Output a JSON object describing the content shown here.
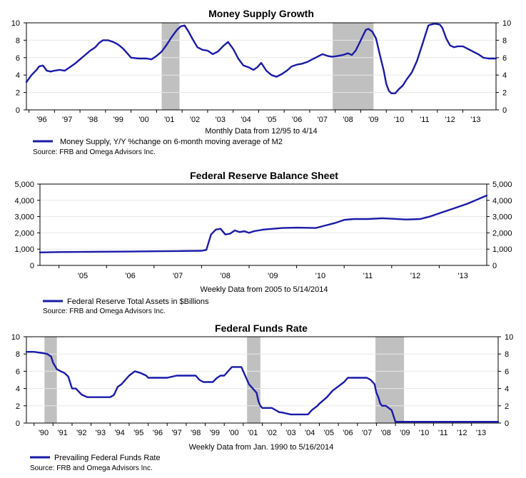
{
  "chart_data": [
    {
      "type": "line",
      "title": "Money Supply Growth",
      "caption": "Monthly Data from 12/95 to 4/14",
      "legend": "Money Supply, Y/Y %change on 6-month moving average of M2",
      "source": "Source: FRB and Omega Advisors Inc.",
      "y_ticks": [
        "0",
        "2",
        "4",
        "6",
        "8",
        "10"
      ],
      "x_tick_labels": [
        "'96",
        "'97",
        "'98",
        "'99",
        "'00",
        "'01",
        "'02",
        "'03",
        "'04",
        "'05",
        "'06",
        "'07",
        "'08",
        "'09",
        "'10",
        "'11",
        "'12",
        "'13"
      ],
      "ylim": [
        0,
        10
      ],
      "xlim": [
        1995.9,
        2014.3
      ],
      "recessions": [
        [
          2001.2,
          2001.9
        ],
        [
          2007.9,
          2009.5
        ]
      ],
      "line_color": "#1a1aaa",
      "recession_color": "#c0c0c0",
      "series": [
        {
          "name": "Money Supply, Y/Y %change on 6-month moving average of M2",
          "x": [
            1995.9,
            1996.0,
            1996.1,
            1996.3,
            1996.4,
            1996.55,
            1996.7,
            1996.85,
            1997.0,
            1997.2,
            1997.4,
            1997.6,
            1997.8,
            1998.0,
            1998.2,
            1998.4,
            1998.6,
            1998.75,
            1998.9,
            1999.1,
            1999.3,
            1999.5,
            1999.7,
            1999.85,
            2000.0,
            2000.3,
            2000.6,
            2000.8,
            2001.0,
            2001.2,
            2001.4,
            2001.6,
            2001.8,
            2001.95,
            2002.1,
            2002.25,
            2002.4,
            2002.6,
            2002.8,
            2003.0,
            2003.2,
            2003.4,
            2003.6,
            2003.8,
            2004.0,
            2004.2,
            2004.4,
            2004.6,
            2004.8,
            2004.95,
            2005.1,
            2005.3,
            2005.5,
            2005.7,
            2005.9,
            2006.1,
            2006.3,
            2006.5,
            2006.7,
            2006.9,
            2007.1,
            2007.3,
            2007.5,
            2007.7,
            2007.9,
            2008.1,
            2008.3,
            2008.5,
            2008.65,
            2008.8,
            2008.95,
            2009.1,
            2009.2,
            2009.3,
            2009.45,
            2009.6,
            2009.75,
            2009.9,
            2010.0,
            2010.1,
            2010.2,
            2010.35,
            2010.5,
            2010.65,
            2010.8,
            2011.0,
            2011.2,
            2011.4,
            2011.55,
            2011.65,
            2011.75,
            2011.9,
            2012.1,
            2012.2,
            2012.35,
            2012.5,
            2012.65,
            2012.8,
            2013.0,
            2013.2,
            2013.4,
            2013.6,
            2013.8,
            2014.0,
            2014.2,
            2014.3
          ],
          "y": [
            3.2,
            3.6,
            4.0,
            4.6,
            5.0,
            5.1,
            4.5,
            4.4,
            4.5,
            4.6,
            4.5,
            4.9,
            5.3,
            5.8,
            6.3,
            6.8,
            7.2,
            7.7,
            8.0,
            8.0,
            7.8,
            7.5,
            7.0,
            6.5,
            6.0,
            5.9,
            5.9,
            5.8,
            6.2,
            6.7,
            7.5,
            8.4,
            9.2,
            9.6,
            9.7,
            9.0,
            8.2,
            7.2,
            6.9,
            6.8,
            6.4,
            6.7,
            7.3,
            7.8,
            7.0,
            5.9,
            5.1,
            4.9,
            4.6,
            4.9,
            5.4,
            4.5,
            4.0,
            3.8,
            4.1,
            4.5,
            5.0,
            5.2,
            5.3,
            5.5,
            5.8,
            6.1,
            6.4,
            6.2,
            6.1,
            6.2,
            6.3,
            6.5,
            6.3,
            6.8,
            7.7,
            8.6,
            9.2,
            9.3,
            9.0,
            8.2,
            6.3,
            4.5,
            3.0,
            2.2,
            1.9,
            1.9,
            2.4,
            2.8,
            3.5,
            4.3,
            5.6,
            7.4,
            8.8,
            9.7,
            9.8,
            9.9,
            9.8,
            9.4,
            8.2,
            7.4,
            7.2,
            7.3,
            7.3,
            7.0,
            6.7,
            6.4,
            6.0,
            5.9,
            5.9,
            5.9
          ]
        }
      ]
    },
    {
      "type": "line",
      "title": "Federal Reserve Balance Sheet",
      "caption": "Weekly Data from 2005 to 5/14/2014",
      "legend": "Federal Reserve Total Assets in $Billions",
      "source": "Source: FRB and Omega Advisors Inc.",
      "y_ticks": [
        "0",
        "1,000",
        "2,000",
        "3,000",
        "4,000",
        "5,000"
      ],
      "x_tick_labels": [
        "'05",
        "'06",
        "'07",
        "'08",
        "'09",
        "'10",
        "'11",
        "'12",
        "'13"
      ],
      "ylim": [
        0,
        5000
      ],
      "xlim": [
        2004.6,
        2014.0
      ],
      "line_color": "#1a1aaa",
      "series": [
        {
          "name": "Federal Reserve Total Assets in $Billions",
          "x": [
            2004.6,
            2005.0,
            2005.5,
            2006.0,
            2006.5,
            2007.0,
            2007.5,
            2008.0,
            2008.1,
            2008.2,
            2008.3,
            2008.4,
            2008.5,
            2008.6,
            2008.7,
            2008.8,
            2008.9,
            2009.0,
            2009.1,
            2009.2,
            2009.3,
            2009.5,
            2009.7,
            2010.0,
            2010.4,
            2010.6,
            2010.8,
            2011.0,
            2011.2,
            2011.5,
            2011.8,
            2012.0,
            2012.3,
            2012.6,
            2012.8,
            2013.0,
            2013.3,
            2013.6,
            2013.8,
            2014.0
          ],
          "y": [
            800,
            820,
            830,
            840,
            850,
            870,
            880,
            900,
            950,
            1900,
            2200,
            2250,
            1900,
            1950,
            2150,
            2050,
            2100,
            2000,
            2100,
            2150,
            2200,
            2250,
            2300,
            2320,
            2300,
            2450,
            2600,
            2800,
            2850,
            2850,
            2900,
            2870,
            2820,
            2850,
            3000,
            3200,
            3500,
            3800,
            4050,
            4300
          ]
        }
      ]
    },
    {
      "type": "line",
      "title": "Federal Funds Rate",
      "caption": "Weekly Data from Jan. 1990 to 5/16/2014",
      "legend": "Prevailing Federal Funds Rate",
      "source": "Source: FRB and Omega Advisors Inc.",
      "y_ticks": [
        "0",
        "2",
        "4",
        "6",
        "8",
        "10"
      ],
      "x_tick_labels": [
        "'90",
        "'91",
        "'92",
        "'93",
        "'94",
        "'95",
        "'96",
        "'97",
        "'98",
        "'99",
        "'00",
        "'01",
        "'02",
        "'03",
        "'04",
        "'05",
        "'06",
        "'07",
        "'08",
        "'09",
        "'10",
        "'11",
        "'12",
        "'13"
      ],
      "ylim": [
        0,
        10
      ],
      "xlim": [
        1989.6,
        2014.4
      ],
      "recessions": [
        [
          1990.55,
          1991.2
        ],
        [
          2001.2,
          2001.9
        ],
        [
          2007.95,
          2009.45
        ]
      ],
      "line_color": "#1a1aaa",
      "recession_color": "#c0c0c0",
      "series": [
        {
          "name": "Prevailing Federal Funds Rate",
          "x": [
            1989.6,
            1990.0,
            1990.5,
            1990.7,
            1990.9,
            1991.0,
            1991.2,
            1991.4,
            1991.6,
            1991.8,
            1992.0,
            1992.2,
            1992.5,
            1992.8,
            1993.0,
            1993.5,
            1994.0,
            1994.2,
            1994.4,
            1994.6,
            1994.8,
            1995.0,
            1995.3,
            1995.6,
            1995.9,
            1996.0,
            1996.5,
            1997.0,
            1997.5,
            1998.0,
            1998.5,
            1998.7,
            1998.9,
            1999.0,
            1999.4,
            1999.6,
            1999.8,
            2000.0,
            2000.2,
            2000.4,
            2000.6,
            2000.9,
            2001.0,
            2001.1,
            2001.2,
            2001.3,
            2001.5,
            2001.7,
            2001.8,
            2001.9,
            2002.0,
            2002.5,
            2002.9,
            2003.0,
            2003.5,
            2004.0,
            2004.4,
            2004.6,
            2004.9,
            2005.0,
            2005.4,
            2005.7,
            2006.0,
            2006.3,
            2006.5,
            2007.0,
            2007.5,
            2007.7,
            2007.8,
            2007.9,
            2008.0,
            2008.1,
            2008.2,
            2008.3,
            2008.5,
            2008.8,
            2008.95,
            2009.0,
            2010.0,
            2011.0,
            2012.0,
            2013.0,
            2014.0,
            2014.4
          ],
          "y": [
            8.25,
            8.25,
            8.1,
            8.0,
            7.7,
            7.0,
            6.25,
            6.0,
            5.8,
            5.4,
            4.0,
            4.0,
            3.3,
            3.0,
            3.0,
            3.0,
            3.0,
            3.25,
            4.2,
            4.5,
            5.0,
            5.5,
            6.0,
            5.8,
            5.5,
            5.25,
            5.25,
            5.25,
            5.5,
            5.5,
            5.5,
            5.0,
            4.75,
            4.75,
            4.75,
            5.2,
            5.5,
            5.5,
            6.0,
            6.5,
            6.5,
            6.5,
            6.0,
            5.5,
            5.0,
            4.5,
            4.0,
            3.5,
            2.5,
            2.0,
            1.75,
            1.75,
            1.25,
            1.25,
            1.0,
            1.0,
            1.0,
            1.5,
            2.0,
            2.25,
            3.0,
            3.75,
            4.25,
            4.75,
            5.25,
            5.25,
            5.25,
            5.0,
            4.75,
            4.5,
            3.5,
            3.0,
            2.25,
            2.0,
            2.0,
            1.5,
            0.5,
            0.15,
            0.15,
            0.15,
            0.15,
            0.15,
            0.15,
            0.15
          ]
        }
      ]
    }
  ]
}
